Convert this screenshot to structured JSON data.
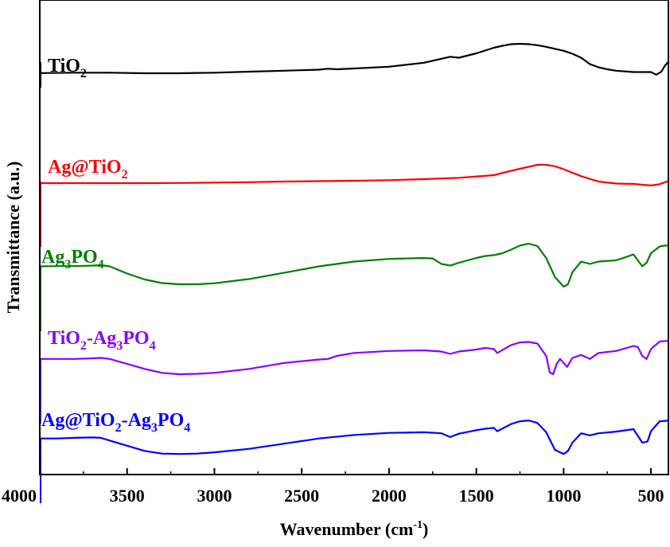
{
  "chart_data": {
    "type": "line",
    "xlabel": "Wavenumber (cm",
    "xlabel_sup": "-1",
    "xlabel_tail": ")",
    "ylabel": "Transmittance (a.u.)",
    "xlim": [
      4000,
      400
    ],
    "x_reversed": true,
    "xticks": [
      4000,
      3500,
      3000,
      2500,
      2000,
      1500,
      1000,
      500
    ],
    "yticks_shown": false,
    "grid": false,
    "legend": "inline labels above each curve",
    "series": [
      {
        "name": "TiO2",
        "label_parts": [
          [
            "TiO",
            ""
          ],
          [
            "2",
            "sub"
          ]
        ],
        "color": "#000000",
        "points": [
          [
            4000,
            0.47
          ],
          [
            3800,
            0.45
          ],
          [
            3600,
            0.45
          ],
          [
            3400,
            0.48
          ],
          [
            3200,
            0.48
          ],
          [
            3000,
            0.45
          ],
          [
            2800,
            0.4
          ],
          [
            2600,
            0.35
          ],
          [
            2400,
            0.3
          ],
          [
            2350,
            0.25
          ],
          [
            2300,
            0.28
          ],
          [
            2200,
            0.24
          ],
          [
            2000,
            0.15
          ],
          [
            1800,
            -0.05
          ],
          [
            1650,
            -0.35
          ],
          [
            1600,
            -0.3
          ],
          [
            1500,
            -0.52
          ],
          [
            1400,
            -0.8
          ],
          [
            1350,
            -0.9
          ],
          [
            1300,
            -0.98
          ],
          [
            1250,
            -1.0
          ],
          [
            1200,
            -0.98
          ],
          [
            1150,
            -0.93
          ],
          [
            1100,
            -0.85
          ],
          [
            1000,
            -0.65
          ],
          [
            950,
            -0.5
          ],
          [
            900,
            -0.3
          ],
          [
            850,
            0.02
          ],
          [
            800,
            0.18
          ],
          [
            750,
            0.28
          ],
          [
            700,
            0.35
          ],
          [
            600,
            0.42
          ],
          [
            500,
            0.42
          ],
          [
            470,
            0.55
          ],
          [
            440,
            0.4
          ],
          [
            420,
            0.1
          ],
          [
            400,
            -0.1
          ]
        ]
      },
      {
        "name": "Ag@TiO2",
        "label_parts": [
          [
            "Ag@TiO",
            ""
          ],
          [
            "2",
            "sub"
          ]
        ],
        "color": "#ff0000",
        "points": [
          [
            4000,
            0.0
          ],
          [
            3800,
            0.0
          ],
          [
            3600,
            0.0
          ],
          [
            3400,
            0.0
          ],
          [
            3200,
            -0.01
          ],
          [
            3000,
            -0.03
          ],
          [
            2800,
            -0.05
          ],
          [
            2600,
            -0.08
          ],
          [
            2400,
            -0.1
          ],
          [
            2200,
            -0.12
          ],
          [
            2000,
            -0.15
          ],
          [
            1800,
            -0.2
          ],
          [
            1600,
            -0.27
          ],
          [
            1400,
            -0.4
          ],
          [
            1300,
            -0.62
          ],
          [
            1200,
            -0.82
          ],
          [
            1150,
            -0.92
          ],
          [
            1100,
            -0.92
          ],
          [
            1050,
            -0.85
          ],
          [
            1000,
            -0.7
          ],
          [
            900,
            -0.35
          ],
          [
            800,
            -0.08
          ],
          [
            700,
            0.02
          ],
          [
            600,
            0.04
          ],
          [
            500,
            0.12
          ],
          [
            450,
            0.05
          ],
          [
            420,
            -0.05
          ],
          [
            400,
            -0.1
          ]
        ]
      },
      {
        "name": "Ag3PO4",
        "label_parts": [
          [
            "Ag",
            ""
          ],
          [
            "3",
            "sub"
          ],
          [
            "PO",
            ""
          ],
          [
            "4",
            "sub"
          ]
        ],
        "color": "#007f00",
        "points": [
          [
            4000,
            -0.05
          ],
          [
            3900,
            -0.06
          ],
          [
            3800,
            -0.06
          ],
          [
            3700,
            -0.08
          ],
          [
            3650,
            -0.1
          ],
          [
            3600,
            -0.05
          ],
          [
            3500,
            0.25
          ],
          [
            3400,
            0.5
          ],
          [
            3300,
            0.65
          ],
          [
            3200,
            0.7
          ],
          [
            3100,
            0.7
          ],
          [
            3000,
            0.66
          ],
          [
            2800,
            0.48
          ],
          [
            2600,
            0.22
          ],
          [
            2400,
            -0.05
          ],
          [
            2200,
            -0.25
          ],
          [
            2000,
            -0.36
          ],
          [
            1800,
            -0.4
          ],
          [
            1750,
            -0.38
          ],
          [
            1700,
            -0.15
          ],
          [
            1650,
            -0.08
          ],
          [
            1600,
            -0.2
          ],
          [
            1500,
            -0.4
          ],
          [
            1450,
            -0.48
          ],
          [
            1400,
            -0.52
          ],
          [
            1350,
            -0.6
          ],
          [
            1300,
            -0.75
          ],
          [
            1250,
            -0.92
          ],
          [
            1200,
            -1.0
          ],
          [
            1150,
            -0.9
          ],
          [
            1100,
            -0.4
          ],
          [
            1050,
            0.4
          ],
          [
            1000,
            0.8
          ],
          [
            975,
            0.7
          ],
          [
            950,
            0.2
          ],
          [
            900,
            -0.25
          ],
          [
            850,
            -0.15
          ],
          [
            800,
            -0.25
          ],
          [
            700,
            -0.3
          ],
          [
            650,
            -0.42
          ],
          [
            600,
            -0.55
          ],
          [
            550,
            -0.05
          ],
          [
            525,
            -0.2
          ],
          [
            500,
            -0.6
          ],
          [
            450,
            -0.88
          ],
          [
            420,
            -0.92
          ],
          [
            400,
            -0.92
          ]
        ]
      },
      {
        "name": "TiO2-Ag3PO4",
        "label_parts": [
          [
            "TiO",
            ""
          ],
          [
            "2",
            "sub"
          ],
          [
            "-Ag",
            ""
          ],
          [
            "3",
            "sub"
          ],
          [
            "PO",
            ""
          ],
          [
            "4",
            "sub"
          ]
        ],
        "color": "#8b00ff",
        "points": [
          [
            4000,
            -0.05
          ],
          [
            3900,
            -0.05
          ],
          [
            3800,
            -0.05
          ],
          [
            3700,
            -0.08
          ],
          [
            3650,
            -0.1
          ],
          [
            3600,
            -0.05
          ],
          [
            3500,
            0.2
          ],
          [
            3400,
            0.45
          ],
          [
            3300,
            0.65
          ],
          [
            3200,
            0.72
          ],
          [
            3100,
            0.7
          ],
          [
            3000,
            0.65
          ],
          [
            2800,
            0.45
          ],
          [
            2600,
            0.15
          ],
          [
            2400,
            -0.02
          ],
          [
            2350,
            -0.05
          ],
          [
            2300,
            -0.2
          ],
          [
            2200,
            -0.35
          ],
          [
            2000,
            -0.45
          ],
          [
            1800,
            -0.48
          ],
          [
            1700,
            -0.42
          ],
          [
            1650,
            -0.3
          ],
          [
            1600,
            -0.42
          ],
          [
            1500,
            -0.52
          ],
          [
            1450,
            -0.6
          ],
          [
            1400,
            -0.55
          ],
          [
            1380,
            -0.35
          ],
          [
            1300,
            -0.75
          ],
          [
            1250,
            -0.88
          ],
          [
            1200,
            -0.9
          ],
          [
            1150,
            -0.82
          ],
          [
            1100,
            -0.2
          ],
          [
            1080,
            0.62
          ],
          [
            1060,
            0.72
          ],
          [
            1040,
            0.2
          ],
          [
            1020,
            -0.05
          ],
          [
            1000,
            0.15
          ],
          [
            980,
            0.35
          ],
          [
            950,
            -0.1
          ],
          [
            900,
            -0.25
          ],
          [
            850,
            -0.05
          ],
          [
            800,
            -0.35
          ],
          [
            700,
            -0.45
          ],
          [
            600,
            -0.7
          ],
          [
            575,
            -0.65
          ],
          [
            550,
            -0.2
          ],
          [
            525,
            -0.05
          ],
          [
            500,
            -0.55
          ],
          [
            450,
            -0.92
          ],
          [
            420,
            -0.95
          ],
          [
            400,
            -0.95
          ]
        ]
      },
      {
        "name": "Ag@TiO2-Ag3PO4",
        "label_parts": [
          [
            "Ag@TiO",
            ""
          ],
          [
            "2",
            "sub"
          ],
          [
            "-Ag",
            ""
          ],
          [
            "3",
            "sub"
          ],
          [
            "PO",
            ""
          ],
          [
            "4",
            "sub"
          ]
        ],
        "color": "#0000ff",
        "points": [
          [
            4000,
            -0.05
          ],
          [
            3900,
            -0.05
          ],
          [
            3800,
            -0.08
          ],
          [
            3700,
            -0.1
          ],
          [
            3650,
            -0.08
          ],
          [
            3600,
            0.05
          ],
          [
            3500,
            0.3
          ],
          [
            3400,
            0.55
          ],
          [
            3300,
            0.68
          ],
          [
            3200,
            0.7
          ],
          [
            3100,
            0.68
          ],
          [
            3000,
            0.62
          ],
          [
            2800,
            0.45
          ],
          [
            2600,
            0.2
          ],
          [
            2400,
            -0.05
          ],
          [
            2200,
            -0.22
          ],
          [
            2000,
            -0.32
          ],
          [
            1800,
            -0.35
          ],
          [
            1700,
            -0.3
          ],
          [
            1650,
            -0.12
          ],
          [
            1600,
            -0.28
          ],
          [
            1500,
            -0.45
          ],
          [
            1450,
            -0.52
          ],
          [
            1400,
            -0.56
          ],
          [
            1380,
            -0.4
          ],
          [
            1300,
            -0.75
          ],
          [
            1250,
            -0.88
          ],
          [
            1200,
            -0.92
          ],
          [
            1150,
            -0.8
          ],
          [
            1100,
            -0.35
          ],
          [
            1050,
            0.5
          ],
          [
            1000,
            0.7
          ],
          [
            975,
            0.55
          ],
          [
            950,
            0.15
          ],
          [
            900,
            -0.3
          ],
          [
            850,
            -0.2
          ],
          [
            800,
            -0.3
          ],
          [
            700,
            -0.38
          ],
          [
            600,
            -0.5
          ],
          [
            550,
            0.15
          ],
          [
            520,
            0.1
          ],
          [
            500,
            -0.4
          ],
          [
            450,
            -0.88
          ],
          [
            420,
            -0.9
          ],
          [
            400,
            -0.92
          ]
        ]
      }
    ]
  }
}
